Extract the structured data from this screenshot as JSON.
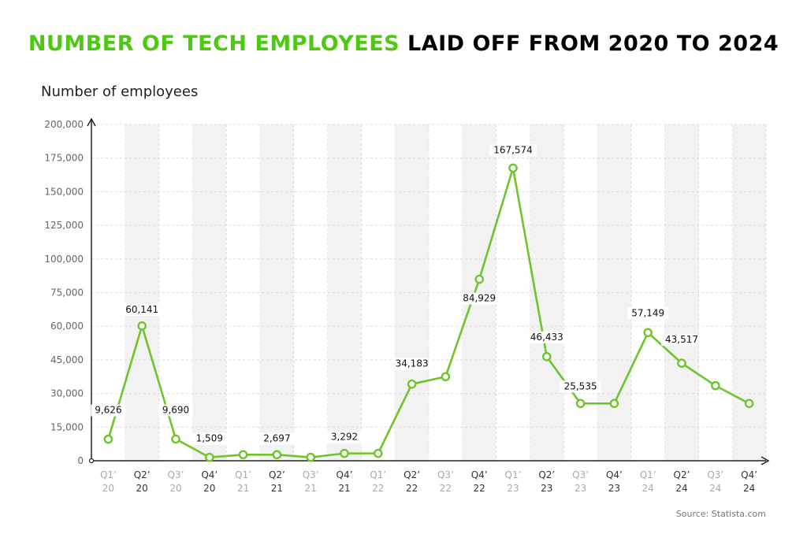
{
  "title": {
    "highlight": "NUMBER OF TECH EMPLOYEES",
    "rest": " LAID OFF FROM 2020 TO 2024"
  },
  "source": "Source: Statista.com",
  "colors": {
    "accent": "#4ec912",
    "line": "#6cc62b",
    "band": "#f2f2f2",
    "grid": "#dcdcdc"
  },
  "chart_data": {
    "type": "line",
    "ylabel": "Number of employees",
    "yticks": [
      "0",
      "15,000",
      "30,000",
      "45,000",
      "60,000",
      "75,000",
      "100,000",
      "125,000",
      "150,000",
      "175,000",
      "200,000"
    ],
    "categories": [
      {
        "q": "Q1’",
        "y": "20"
      },
      {
        "q": "Q2’",
        "y": "20"
      },
      {
        "q": "Q3’",
        "y": "20"
      },
      {
        "q": "Q4’",
        "y": "20"
      },
      {
        "q": "Q1’",
        "y": "21"
      },
      {
        "q": "Q2’",
        "y": "21"
      },
      {
        "q": "Q3’",
        "y": "21"
      },
      {
        "q": "Q4’",
        "y": "21"
      },
      {
        "q": "Q1’",
        "y": "22"
      },
      {
        "q": "Q2’",
        "y": "22"
      },
      {
        "q": "Q3’",
        "y": "22"
      },
      {
        "q": "Q4’",
        "y": "22"
      },
      {
        "q": "Q1’",
        "y": "23"
      },
      {
        "q": "Q2’",
        "y": "23"
      },
      {
        "q": "Q3’",
        "y": "23"
      },
      {
        "q": "Q4’",
        "y": "23"
      },
      {
        "q": "Q1’",
        "y": "24"
      },
      {
        "q": "Q2’",
        "y": "24"
      },
      {
        "q": "Q3’",
        "y": "24"
      },
      {
        "q": "Q4’",
        "y": "24"
      }
    ],
    "values": [
      9626,
      60141,
      9690,
      1509,
      2697,
      2697,
      1509,
      3292,
      3292,
      34183,
      37500,
      84929,
      167574,
      46433,
      25535,
      25535,
      57149,
      43517,
      33500,
      25535
    ],
    "labels": [
      "9,626",
      "60,141",
      "9,690",
      "1,509",
      "",
      "2,697",
      "",
      "3,292",
      "",
      "34,183",
      "",
      "84,929",
      "167,574",
      "46,433",
      "25,535",
      "",
      "57,149",
      "43,517",
      "",
      ""
    ]
  }
}
